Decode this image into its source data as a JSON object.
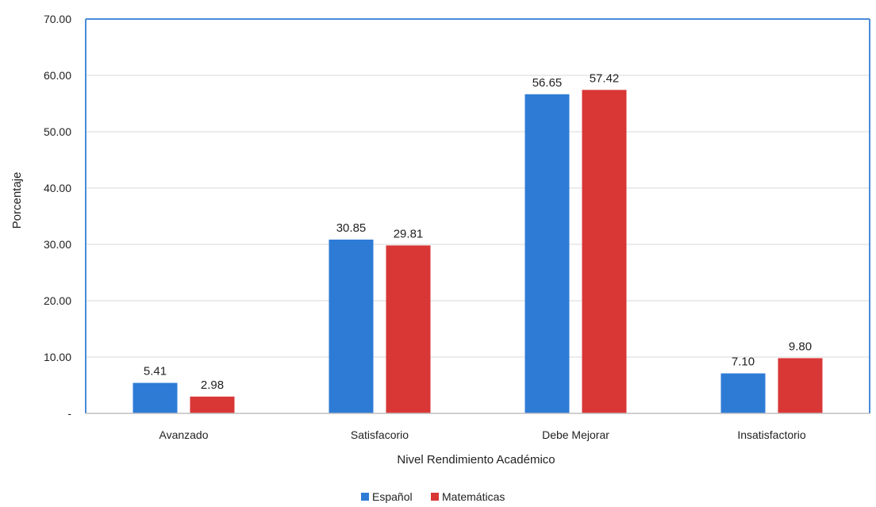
{
  "chart_data": {
    "type": "bar",
    "title": "",
    "xlabel": "Nivel Rendimiento Académico",
    "ylabel": "Porcentaje",
    "categories": [
      "Avanzado",
      "Satisfacorio",
      "Debe Mejorar",
      "Insatisfactorio"
    ],
    "series": [
      {
        "name": "Español",
        "color": "#2E7BD6",
        "values": [
          5.41,
          30.85,
          56.65,
          7.1
        ],
        "labels": [
          "5.41",
          "30.85",
          "56.65",
          "7.10"
        ]
      },
      {
        "name": "Matemáticas",
        "color": "#D93636",
        "values": [
          2.98,
          29.81,
          57.42,
          9.8
        ],
        "labels": [
          "2.98",
          "29.81",
          "57.42",
          "9.80"
        ]
      }
    ],
    "ylim": [
      0,
      70
    ],
    "yticks": [
      0,
      10,
      20,
      30,
      40,
      50,
      60,
      70
    ],
    "ytick_labels": [
      "-",
      "10.00",
      "20.00",
      "30.00",
      "40.00",
      "50.00",
      "60.00",
      "70.00"
    ],
    "grid": true,
    "legend": "bottom-center",
    "colors": {
      "plot_border": "#4A8BD6",
      "grid": "#D9D9D9",
      "axis": "#BFBFBF"
    }
  }
}
